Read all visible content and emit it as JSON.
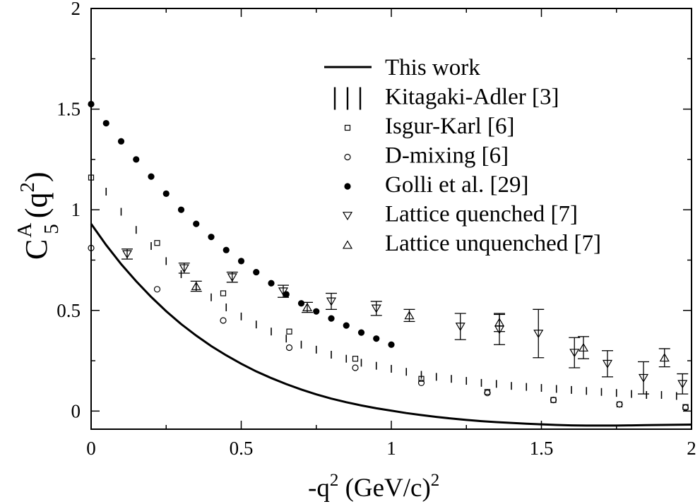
{
  "chart_data": {
    "type": "scatter",
    "xlabel": {
      "main": "-q",
      "sup": "2",
      "unit": " (GeV/c)",
      "unit_sup": "2"
    },
    "ylabel": {
      "c": "C",
      "sup": "A",
      "sub": "5",
      "arg": "(q",
      "arg_sup": "2",
      "close": ")"
    },
    "xlim": [
      0,
      2
    ],
    "ylim": [
      -0.09,
      2
    ],
    "xticks": [
      "0",
      "0.5",
      "1",
      "1.5",
      "2"
    ],
    "yticks": [
      "0",
      "0.5",
      "1",
      "1.5",
      "2"
    ],
    "legend_position": "top-right",
    "series": [
      {
        "name": "This work",
        "label": "This work",
        "marker": "line",
        "x": [
          0,
          0.05,
          0.1,
          0.15,
          0.2,
          0.25,
          0.3,
          0.35,
          0.4,
          0.45,
          0.5,
          0.55,
          0.6,
          0.65,
          0.7,
          0.75,
          0.8,
          0.85,
          0.9,
          0.95,
          1.0,
          1.05,
          1.1,
          1.15,
          1.2,
          1.25,
          1.3,
          1.35,
          1.4,
          1.45,
          1.5,
          1.55,
          1.6,
          1.65,
          1.7,
          1.75,
          1.8,
          1.85,
          1.9,
          1.95,
          2.0
        ],
        "y": [
          0.93,
          0.825,
          0.73,
          0.645,
          0.567,
          0.496,
          0.432,
          0.375,
          0.323,
          0.277,
          0.235,
          0.197,
          0.164,
          0.134,
          0.107,
          0.083,
          0.062,
          0.044,
          0.028,
          0.014,
          0.002,
          -0.01,
          -0.02,
          -0.029,
          -0.037,
          -0.044,
          -0.05,
          -0.055,
          -0.059,
          -0.063,
          -0.066,
          -0.069,
          -0.071,
          -0.072,
          -0.072,
          -0.072,
          -0.071,
          -0.07,
          -0.069,
          -0.068,
          -0.067
        ]
      },
      {
        "name": "Kitagaki-Adler",
        "label": "Kitagaki-Adler [3]",
        "marker": "vbar",
        "x": [
          0,
          0.05,
          0.1,
          0.15,
          0.2,
          0.25,
          0.3,
          0.35,
          0.4,
          0.45,
          0.5,
          0.55,
          0.6,
          0.65,
          0.7,
          0.75,
          0.8,
          0.85,
          0.9,
          0.95,
          1.0,
          1.05,
          1.1,
          1.15,
          1.2,
          1.25,
          1.3,
          1.35,
          1.4,
          1.45,
          1.5,
          1.55,
          1.6,
          1.65,
          1.7,
          1.75,
          1.8,
          1.85,
          1.9,
          1.95,
          2.0
        ],
        "y": [
          1.2,
          1.09,
          0.99,
          0.9,
          0.82,
          0.745,
          0.68,
          0.62,
          0.565,
          0.515,
          0.47,
          0.43,
          0.395,
          0.36,
          0.33,
          0.305,
          0.28,
          0.26,
          0.24,
          0.225,
          0.21,
          0.195,
          0.18,
          0.17,
          0.16,
          0.15,
          0.14,
          0.135,
          0.125,
          0.12,
          0.115,
          0.11,
          0.105,
          0.1,
          0.095,
          0.09,
          0.085,
          0.08,
          0.08,
          0.075,
          0.07
        ]
      },
      {
        "name": "Isgur-Karl",
        "label": "Isgur-Karl [6]",
        "marker": "square",
        "x": [
          0,
          0.22,
          0.44,
          0.66,
          0.88,
          1.1,
          1.32,
          1.54,
          1.76,
          1.98
        ],
        "y": [
          1.16,
          0.835,
          0.585,
          0.395,
          0.26,
          0.16,
          0.095,
          0.055,
          0.033,
          0.02
        ]
      },
      {
        "name": "D-mixing",
        "label": "D-mixing  [6]",
        "marker": "circle",
        "x": [
          0,
          0.22,
          0.44,
          0.66,
          0.88,
          1.1,
          1.32,
          1.54,
          1.76,
          1.98
        ],
        "y": [
          0.81,
          0.605,
          0.45,
          0.315,
          0.215,
          0.14,
          0.09,
          0.055,
          0.033,
          0.017
        ]
      },
      {
        "name": "Golli et al.",
        "label": "Golli et al. [29]",
        "marker": "filled-circle",
        "x": [
          0,
          0.05,
          0.1,
          0.15,
          0.2,
          0.25,
          0.3,
          0.35,
          0.4,
          0.45,
          0.5,
          0.55,
          0.6,
          0.65,
          0.7,
          0.75,
          0.8,
          0.85,
          0.9,
          0.95,
          1.0
        ],
        "y": [
          1.525,
          1.43,
          1.34,
          1.25,
          1.165,
          1.08,
          1.0,
          0.93,
          0.865,
          0.8,
          0.745,
          0.69,
          0.635,
          0.58,
          0.535,
          0.495,
          0.46,
          0.425,
          0.39,
          0.36,
          0.33
        ]
      },
      {
        "name": "Lattice quenched",
        "label": " Lattice quenched [7]",
        "marker": "triangle-down",
        "x": [
          0.12,
          0.31,
          0.47,
          0.64,
          0.8,
          0.95,
          1.23,
          1.36,
          1.49,
          1.61,
          1.72,
          1.84,
          1.97
        ],
        "y": [
          0.78,
          0.71,
          0.665,
          0.595,
          0.545,
          0.51,
          0.42,
          0.405,
          0.385,
          0.29,
          0.235,
          0.165,
          0.135
        ],
        "err": [
          0.025,
          0.025,
          0.025,
          0.03,
          0.04,
          0.035,
          0.065,
          0.075,
          0.12,
          0.075,
          0.065,
          0.08,
          0.05
        ]
      },
      {
        "name": "Lattice unquenched",
        "label": " Lattice unquenched [7]",
        "marker": "triangle-up",
        "x": [
          0.35,
          0.72,
          1.06,
          1.36,
          1.64,
          1.91
        ],
        "y": [
          0.62,
          0.515,
          0.475,
          0.44,
          0.315,
          0.265
        ],
        "err": [
          0.025,
          0.025,
          0.03,
          0.045,
          0.055,
          0.045
        ]
      }
    ]
  }
}
